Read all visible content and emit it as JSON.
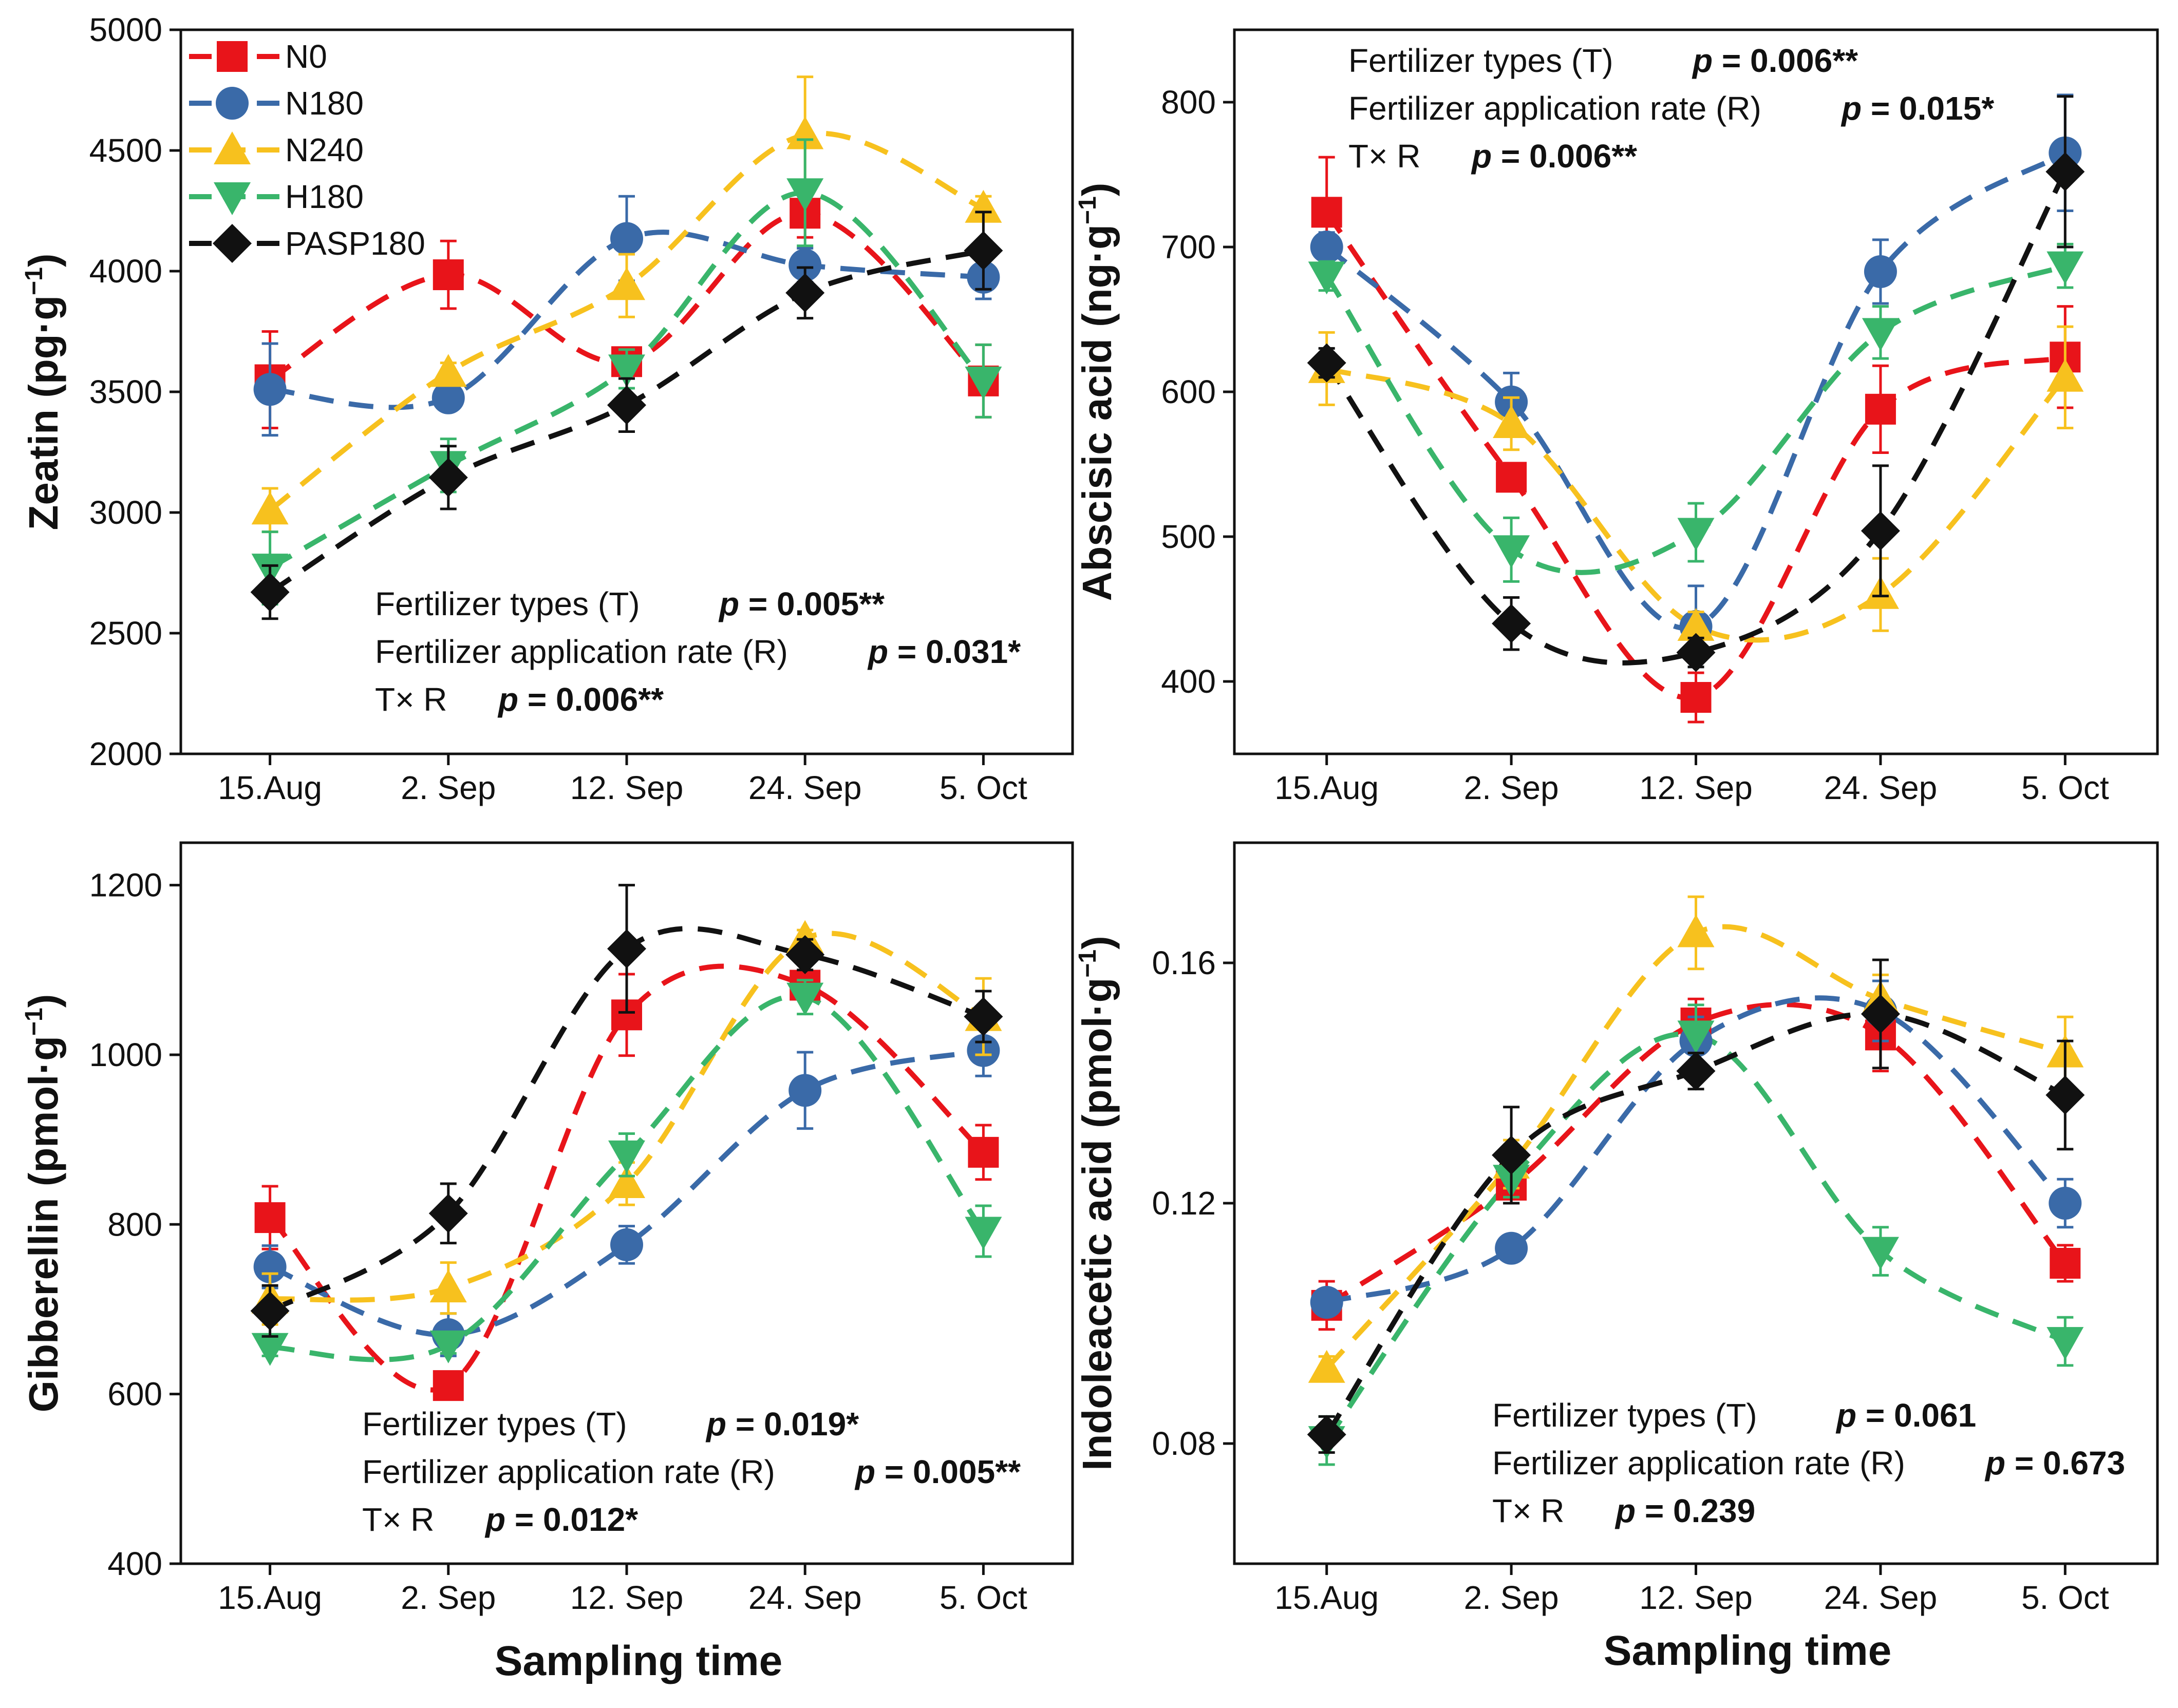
{
  "colors": {
    "N0": "#e8141a",
    "N180": "#3a6aa8",
    "N240": "#f7c11e",
    "H180": "#39b56b",
    "PASP180": "#111111"
  },
  "xlabel": "Sampling time",
  "chart_data": [
    {
      "type": "line",
      "title": "",
      "ylabel": "Zeatin (pg·g",
      "ylabel_sup": "−1",
      "ylabel_close": ")",
      "categories": [
        "15.Aug",
        "2. Sep",
        "12. Sep",
        "24. Sep",
        "5. Oct"
      ],
      "ylim": [
        2000,
        5000
      ],
      "yticks": [
        2000,
        2500,
        3000,
        3500,
        4000,
        4500,
        5000
      ],
      "tick_labels": [
        "2000",
        "2500",
        "3000",
        "3500",
        "4000",
        "4500",
        "5000"
      ],
      "legend": [
        "N0",
        "N180",
        "N240",
        "H180",
        "PASP180"
      ],
      "series": [
        {
          "name": "N0",
          "marker": "square",
          "values": [
            3550,
            3985,
            3625,
            4240,
            3545
          ],
          "errors": [
            200,
            140,
            40,
            100,
            150
          ]
        },
        {
          "name": "N180",
          "marker": "circle",
          "values": [
            3510,
            3475,
            4135,
            4025,
            3975
          ],
          "errors": [
            190,
            50,
            175,
            70,
            90
          ]
        },
        {
          "name": "N240",
          "marker": "triangle-up",
          "values": [
            3010,
            3580,
            3940,
            4565,
            4260
          ],
          "errors": [
            90,
            40,
            130,
            240,
            50
          ]
        },
        {
          "name": "H180",
          "marker": "triangle-down",
          "values": [
            2770,
            3195,
            3595,
            4325,
            3545
          ],
          "errors": [
            150,
            110,
            80,
            220,
            150
          ]
        },
        {
          "name": "PASP180",
          "marker": "diamond",
          "values": [
            2670,
            3145,
            3445,
            3910,
            4085
          ],
          "errors": [
            110,
            130,
            110,
            105,
            160
          ]
        }
      ],
      "annotations": [
        {
          "label": "Fertilizer types (T)",
          "p": "p = 0.005**"
        },
        {
          "label": "Fertilizer application rate (R)",
          "p": "p = 0.031*"
        },
        {
          "label": "T× R",
          "p": "p = 0.006**"
        }
      ]
    },
    {
      "type": "line",
      "title": "",
      "ylabel": "Abscisic acid (ng·g",
      "ylabel_sup": "−1",
      "ylabel_close": ")",
      "categories": [
        "15.Aug",
        "2. Sep",
        "12. Sep",
        "24. Sep",
        "5. Oct"
      ],
      "ylim": [
        350,
        850
      ],
      "yticks": [
        400,
        500,
        600,
        700,
        800
      ],
      "tick_labels": [
        "400",
        "500",
        "600",
        "700",
        "800"
      ],
      "series": [
        {
          "name": "N0",
          "marker": "square",
          "values": [
            724,
            541,
            389,
            588,
            624
          ],
          "errors": [
            38,
            8,
            17,
            30,
            35
          ]
        },
        {
          "name": "N180",
          "marker": "circle",
          "values": [
            700,
            593,
            438,
            683,
            765
          ],
          "errors": [
            10,
            20,
            28,
            22,
            40
          ]
        },
        {
          "name": "N240",
          "marker": "triangle-up",
          "values": [
            616,
            578,
            438,
            460,
            610
          ],
          "errors": [
            25,
            18,
            10,
            25,
            35
          ]
        },
        {
          "name": "H180",
          "marker": "triangle-down",
          "values": [
            680,
            491,
            503,
            641,
            687
          ],
          "errors": [
            10,
            22,
            20,
            18,
            15
          ]
        },
        {
          "name": "PASP180",
          "marker": "diamond",
          "values": [
            620,
            440,
            420,
            504,
            752
          ],
          "errors": [
            10,
            18,
            10,
            45,
            52
          ]
        }
      ],
      "annotations": [
        {
          "label": "Fertilizer types (T)",
          "p": "p = 0.006**"
        },
        {
          "label": "Fertilizer application rate (R)",
          "p": "p = 0.015*"
        },
        {
          "label": "T× R",
          "p": "p = 0.006**"
        }
      ]
    },
    {
      "type": "line",
      "title": "",
      "ylabel": "Gibberellin (pmol·g",
      "ylabel_sup": "−1",
      "ylabel_close": ")",
      "categories": [
        "15.Aug",
        "2. Sep",
        "12. Sep",
        "24. Sep",
        "5. Oct"
      ],
      "ylim": [
        400,
        1250
      ],
      "yticks": [
        400,
        600,
        800,
        1000,
        1200
      ],
      "tick_labels": [
        "400",
        "600",
        "800",
        "1000",
        "1200"
      ],
      "series": [
        {
          "name": "N0",
          "marker": "square",
          "values": [
            808,
            610,
            1047,
            1082,
            885
          ],
          "errors": [
            37,
            15,
            48,
            15,
            32
          ]
        },
        {
          "name": "N180",
          "marker": "circle",
          "values": [
            750,
            670,
            776,
            958,
            1005
          ],
          "errors": [
            25,
            25,
            22,
            45,
            30
          ]
        },
        {
          "name": "N240",
          "marker": "triangle-up",
          "values": [
            712,
            725,
            848,
            1137,
            1045
          ],
          "errors": [
            30,
            30,
            25,
            10,
            45
          ]
        },
        {
          "name": "H180",
          "marker": "triangle-down",
          "values": [
            655,
            658,
            882,
            1068,
            792
          ],
          "errors": [
            10,
            10,
            25,
            20,
            30
          ]
        },
        {
          "name": "PASP180",
          "marker": "diamond",
          "values": [
            698,
            813,
            1125,
            1118,
            1045
          ],
          "errors": [
            30,
            35,
            75,
            18,
            30
          ]
        }
      ],
      "annotations": [
        {
          "label": "Fertilizer types (T)",
          "p": "p = 0.019*"
        },
        {
          "label": "Fertilizer application rate (R)",
          "p": "p = 0.005**"
        },
        {
          "label": "T× R",
          "p": "p = 0.012*"
        }
      ]
    },
    {
      "type": "line",
      "title": "",
      "ylabel": "Indoleacetic acid (pmol·g",
      "ylabel_sup": "−1",
      "ylabel_close": ")",
      "categories": [
        "15.Aug",
        "2. Sep",
        "12. Sep",
        "24. Sep",
        "5. Oct"
      ],
      "ylim": [
        0.06,
        0.18
      ],
      "yticks": [
        0.08,
        0.12,
        0.16
      ],
      "tick_labels": [
        "0.08",
        "0.12",
        "0.16"
      ],
      "series": [
        {
          "name": "N0",
          "marker": "square",
          "values": [
            0.103,
            0.123,
            0.15,
            0.148,
            0.11
          ],
          "errors": [
            0.004,
            0.003,
            0.004,
            0.006,
            0.003
          ]
        },
        {
          "name": "N180",
          "marker": "circle",
          "values": [
            0.1035,
            0.1125,
            0.147,
            0.152,
            0.12
          ],
          "errors": [
            0.002,
            0.001,
            0.004,
            0.005,
            0.004
          ]
        },
        {
          "name": "N240",
          "marker": "triangle-up",
          "values": [
            0.0925,
            0.1265,
            0.165,
            0.154,
            0.145
          ],
          "errors": [
            0.002,
            0.004,
            0.006,
            0.004,
            0.006
          ]
        },
        {
          "name": "H180",
          "marker": "triangle-down",
          "values": [
            0.0805,
            0.124,
            0.148,
            0.112,
            0.097
          ],
          "errors": [
            0.004,
            0.003,
            0.005,
            0.004,
            0.004
          ]
        },
        {
          "name": "PASP180",
          "marker": "diamond",
          "values": [
            0.0815,
            0.128,
            0.142,
            0.1515,
            0.138
          ],
          "errors": [
            0.003,
            0.008,
            0.003,
            0.009,
            0.009
          ]
        }
      ],
      "annotations": [
        {
          "label": "Fertilizer types (T)",
          "p": "p = 0.061"
        },
        {
          "label": "Fertilizer application rate (R)",
          "p": "p = 0.673"
        },
        {
          "label": "T× R",
          "p": "p = 0.239"
        }
      ]
    }
  ]
}
